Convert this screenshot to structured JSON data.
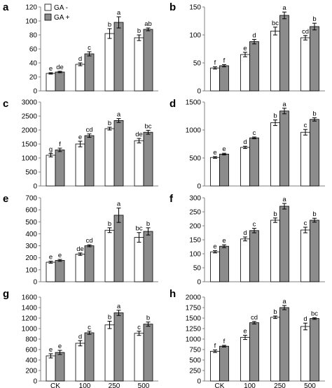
{
  "legend": {
    "items": [
      {
        "label": "GA -",
        "color": "#ffffff"
      },
      {
        "label": "GA +",
        "color": "#8c8c8c"
      }
    ],
    "placement": "top-left of panel a"
  },
  "categories": [
    "CK",
    "100",
    "250",
    "500"
  ],
  "colors": {
    "ga_minus": "#ffffff",
    "ga_plus": "#8c8c8c",
    "axis": "#808080",
    "bar_stroke": "#000000"
  },
  "chart_data": [
    {
      "panel": "a",
      "type": "bar",
      "categories": [
        "CK",
        "100",
        "250",
        "500"
      ],
      "yticks": [
        0,
        20,
        40,
        60,
        80,
        100,
        120
      ],
      "ylim": [
        0,
        120
      ],
      "series": [
        {
          "name": "GA -",
          "values": [
            25,
            38,
            82,
            76
          ],
          "errors": [
            1,
            2,
            7,
            4
          ],
          "letters": [
            "e",
            "d",
            "b",
            "b"
          ]
        },
        {
          "name": "GA +",
          "values": [
            27,
            53,
            98,
            88
          ],
          "errors": [
            1,
            3,
            8,
            2
          ],
          "letters": [
            "de",
            "c",
            "a",
            "ab"
          ]
        }
      ]
    },
    {
      "panel": "b",
      "type": "bar",
      "categories": [
        "CK",
        "100",
        "250",
        "500"
      ],
      "yticks": [
        0,
        50,
        100,
        150
      ],
      "ylim": [
        0,
        150
      ],
      "series": [
        {
          "name": "GA -",
          "values": [
            41,
            65,
            107,
            95
          ],
          "errors": [
            2,
            4,
            7,
            4
          ],
          "letters": [
            "f",
            "e",
            "bc",
            "cd"
          ]
        },
        {
          "name": "GA +",
          "values": [
            45,
            88,
            135,
            115
          ],
          "errors": [
            2,
            4,
            6,
            6
          ],
          "letters": [
            "f",
            "d",
            "a",
            "b"
          ]
        }
      ]
    },
    {
      "panel": "c",
      "type": "bar",
      "categories": [
        "CK",
        "100",
        "250",
        "500"
      ],
      "yticks": [
        0,
        500,
        1000,
        1500,
        2000,
        2500,
        3000
      ],
      "ylim": [
        0,
        3000
      ],
      "series": [
        {
          "name": "GA -",
          "values": [
            1100,
            1500,
            2050,
            1620
          ],
          "errors": [
            60,
            100,
            50,
            80
          ],
          "letters": [
            "g",
            "e",
            "b",
            "de"
          ]
        },
        {
          "name": "GA +",
          "values": [
            1290,
            1800,
            2340,
            1920
          ],
          "errors": [
            60,
            60,
            70,
            70
          ],
          "letters": [
            "f",
            "cd",
            "a",
            "bc"
          ]
        }
      ]
    },
    {
      "panel": "d",
      "type": "bar",
      "categories": [
        "CK",
        "100",
        "250",
        "500"
      ],
      "yticks": [
        0,
        500,
        1000,
        1500
      ],
      "ylim": [
        0,
        1500
      ],
      "series": [
        {
          "name": "GA -",
          "values": [
            510,
            690,
            1130,
            960
          ],
          "errors": [
            15,
            20,
            50,
            50
          ],
          "letters": [
            "e",
            "d",
            "b",
            "c"
          ]
        },
        {
          "name": "GA +",
          "values": [
            570,
            860,
            1340,
            1190
          ],
          "errors": [
            15,
            15,
            50,
            30
          ],
          "letters": [
            "e",
            "c",
            "a",
            "b"
          ]
        }
      ]
    },
    {
      "panel": "e",
      "type": "bar",
      "categories": [
        "CK",
        "100",
        "250",
        "500"
      ],
      "yticks": [
        0,
        100,
        200,
        300,
        400,
        500,
        600,
        700
      ],
      "ylim": [
        0,
        700
      ],
      "series": [
        {
          "name": "GA -",
          "values": [
            163,
            230,
            430,
            370
          ],
          "errors": [
            8,
            10,
            20,
            40
          ],
          "letters": [
            "e",
            "de",
            "b",
            "bc"
          ]
        },
        {
          "name": "GA +",
          "values": [
            178,
            300,
            555,
            420
          ],
          "errors": [
            8,
            8,
            60,
            30
          ],
          "letters": [
            "e",
            "cd",
            "a",
            "b"
          ]
        }
      ]
    },
    {
      "panel": "f",
      "type": "bar",
      "categories": [
        "CK",
        "100",
        "250",
        "500"
      ],
      "yticks": [
        0,
        50,
        100,
        150,
        200,
        250,
        300
      ],
      "ylim": [
        0,
        300
      ],
      "series": [
        {
          "name": "GA -",
          "values": [
            107,
            153,
            220,
            185
          ],
          "errors": [
            4,
            7,
            8,
            10
          ],
          "letters": [
            "e",
            "d",
            "b",
            "c"
          ]
        },
        {
          "name": "GA +",
          "values": [
            127,
            183,
            270,
            220
          ],
          "errors": [
            5,
            8,
            10,
            7
          ],
          "letters": [
            "e",
            "c",
            "a",
            "b"
          ]
        }
      ]
    },
    {
      "panel": "g",
      "type": "bar",
      "categories": [
        "CK",
        "100",
        "250",
        "500"
      ],
      "yticks": [
        0,
        200,
        400,
        600,
        800,
        1000,
        1200,
        1400,
        1600
      ],
      "ylim": [
        0,
        1600
      ],
      "series": [
        {
          "name": "GA -",
          "values": [
            480,
            720,
            1070,
            910
          ],
          "errors": [
            40,
            50,
            70,
            40
          ],
          "letters": [
            "e",
            "d",
            "b",
            "c"
          ]
        },
        {
          "name": "GA +",
          "values": [
            545,
            920,
            1300,
            1085
          ],
          "errors": [
            40,
            30,
            50,
            40
          ],
          "letters": [
            "e",
            "c",
            "a",
            "b"
          ]
        }
      ]
    },
    {
      "panel": "h",
      "type": "bar",
      "categories": [
        "CK",
        "100",
        "250",
        "500"
      ],
      "yticks": [
        0,
        250,
        500,
        750,
        1000,
        1250,
        1500,
        1750,
        2000
      ],
      "ylim": [
        0,
        2000
      ],
      "series": [
        {
          "name": "GA -",
          "values": [
            710,
            1040,
            1520,
            1300
          ],
          "errors": [
            30,
            50,
            30,
            80
          ],
          "letters": [
            "f",
            "e",
            "b",
            "d"
          ]
        },
        {
          "name": "GA +",
          "values": [
            830,
            1390,
            1750,
            1490
          ],
          "errors": [
            20,
            30,
            50,
            20
          ],
          "letters": [
            "f",
            "cd",
            "a",
            "bc"
          ]
        }
      ]
    }
  ]
}
